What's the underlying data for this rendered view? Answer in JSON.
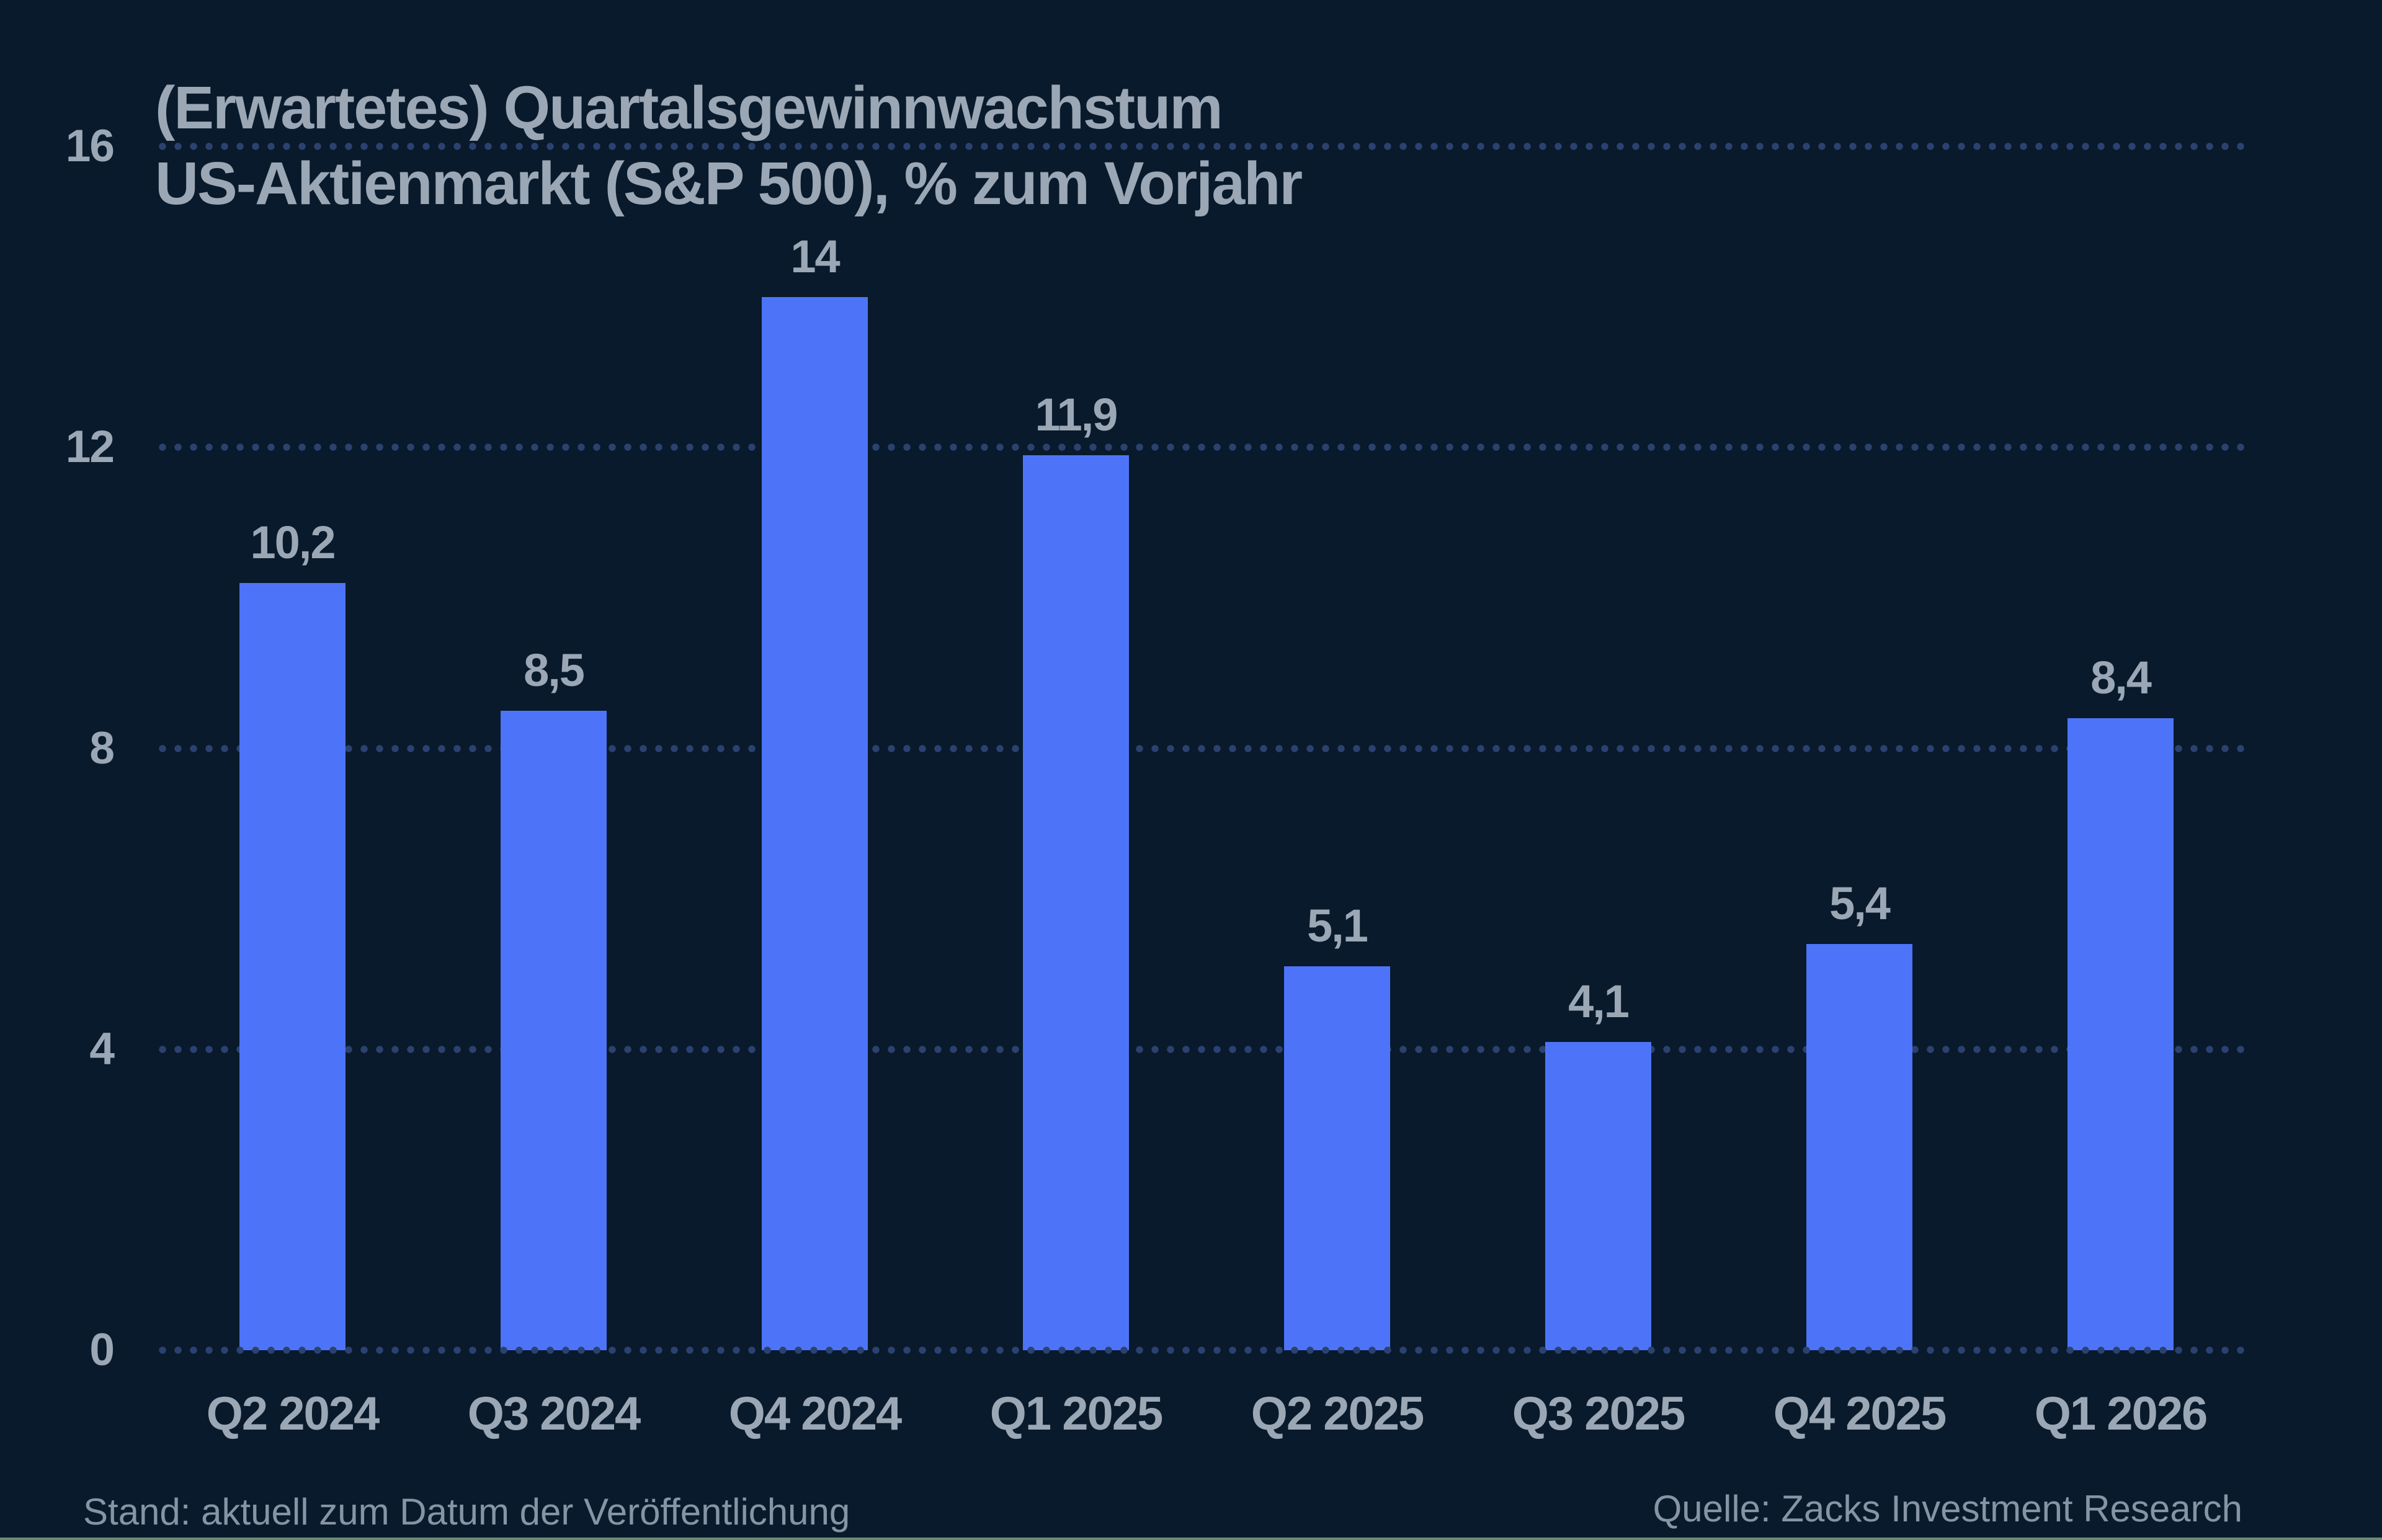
{
  "chart_data": {
    "type": "bar",
    "title_line1": "(Erwartetes) Quartalsgewinnwachstum",
    "title_line2": "US-Aktienmarkt (S&P 500), % zum Vorjahr",
    "categories": [
      "Q2 2024",
      "Q3 2024",
      "Q4 2024",
      "Q1 2025",
      "Q2 2025",
      "Q3 2025",
      "Q4 2025",
      "Q1 2026"
    ],
    "values": [
      10.2,
      8.5,
      14,
      11.9,
      5.1,
      4.1,
      5.4,
      8.4
    ],
    "value_labels": [
      "10,2",
      "8,5",
      "14",
      "11,9",
      "5,1",
      "4,1",
      "5,4",
      "8,4"
    ],
    "y_ticks": [
      0,
      4,
      8,
      12,
      16
    ],
    "ylim": [
      0,
      16
    ],
    "xlabel": "",
    "ylabel": "",
    "grid": "horizontal-dotted",
    "legend_position": "none"
  },
  "footer": {
    "left": "Stand: aktuell zum Datum der Veröffentlichung",
    "right": "Quelle: Zacks Investment Research"
  },
  "colors": {
    "background": "#081a2b",
    "bar": "#4d74f8",
    "grid_dot": "#2b4270",
    "label_text": "#9ba7b5",
    "footer_text": "#8694a5",
    "bottom_rule": "#6f8c72"
  }
}
